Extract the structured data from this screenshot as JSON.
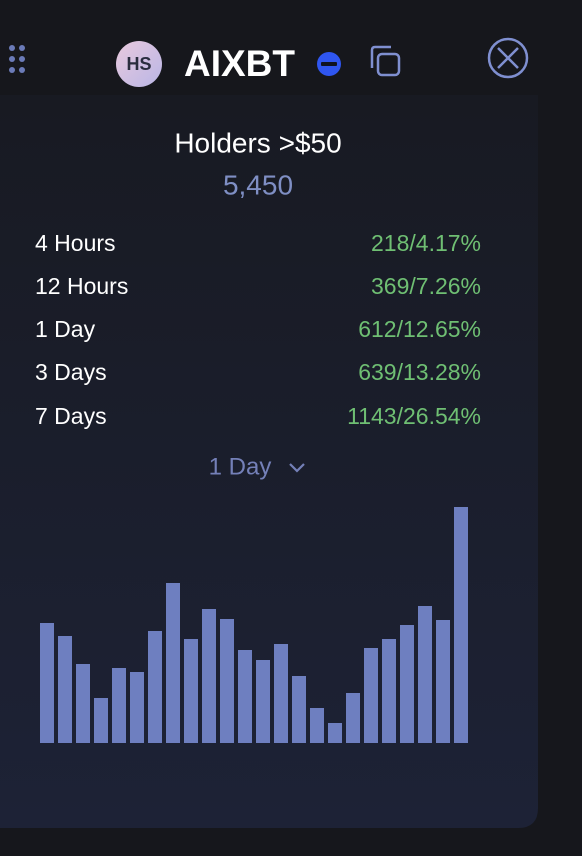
{
  "header": {
    "avatar": "HS",
    "title": "AIXBT"
  },
  "stat": {
    "label": "Holders >$50",
    "value": "5,450"
  },
  "rows": [
    {
      "label": "4 Hours",
      "value": "218/4.17%"
    },
    {
      "label": "12 Hours",
      "value": "369/7.26%"
    },
    {
      "label": "1 Day",
      "value": "612/12.65%"
    },
    {
      "label": "3 Days",
      "value": "639/13.28%"
    },
    {
      "label": "7 Days",
      "value": "1143/26.54%"
    }
  ],
  "dropdown": "1 Day",
  "chart": {
    "type": "bar",
    "color": "#6e7fc0",
    "values": [
      120,
      107,
      79,
      45,
      75,
      71,
      112,
      160,
      104,
      134,
      124,
      93,
      83,
      99,
      67,
      35,
      20,
      50,
      95,
      104,
      118,
      137,
      123,
      236
    ]
  }
}
